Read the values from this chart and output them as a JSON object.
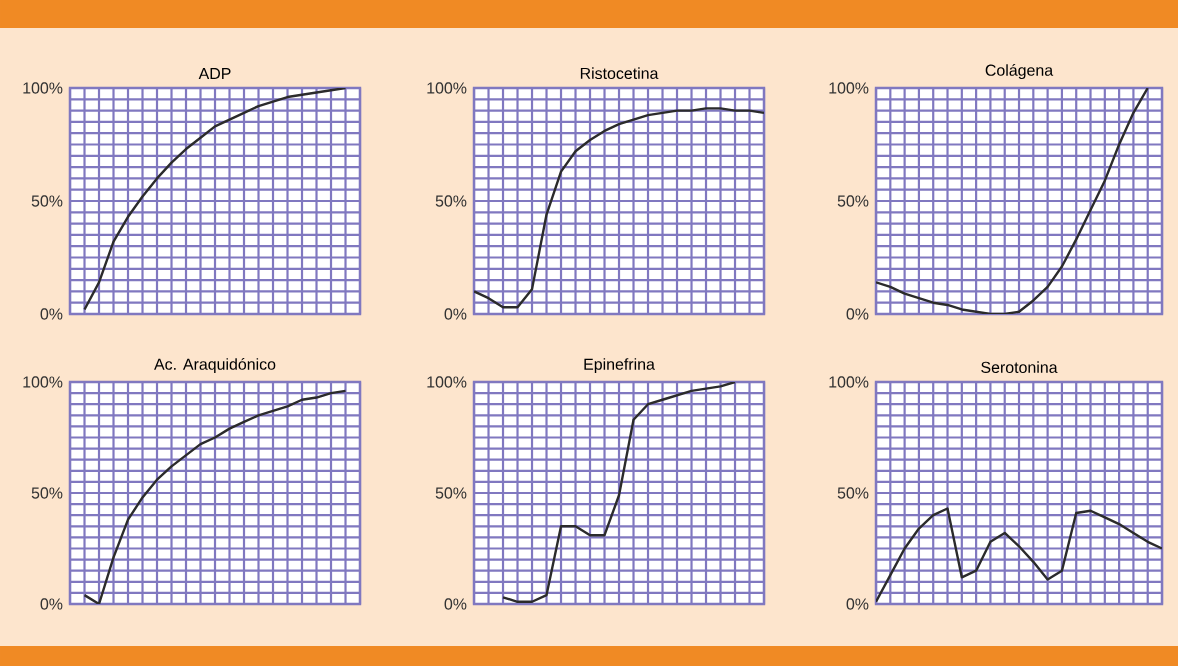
{
  "chart_data": [
    {
      "type": "line",
      "title": "ADP",
      "categories": [
        null,
        null,
        null,
        null,
        null,
        null,
        null,
        null,
        null,
        null,
        null,
        null,
        null,
        null,
        null,
        null,
        null,
        null,
        null,
        null,
        null
      ],
      "ylim": [
        0,
        100
      ],
      "yticks": [
        {
          "value": 0,
          "label": "0%"
        },
        {
          "value": 50,
          "label": "50%"
        },
        {
          "value": 100,
          "label": "100%"
        }
      ],
      "grid": true,
      "series": [
        {
          "color": "#2b2b2b",
          "values": [
            null,
            2,
            14,
            32,
            43,
            52,
            60,
            67,
            73,
            78,
            83,
            86,
            89,
            92,
            94,
            96,
            97,
            98,
            99,
            100,
            null
          ]
        }
      ]
    },
    {
      "type": "line",
      "title": "Ristocetina",
      "categories": [
        null,
        null,
        null,
        null,
        null,
        null,
        null,
        null,
        null,
        null,
        null,
        null,
        null,
        null,
        null,
        null,
        null,
        null,
        null,
        null,
        null
      ],
      "ylim": [
        0,
        100
      ],
      "yticks": [
        {
          "value": 0,
          "label": "0%"
        },
        {
          "value": 50,
          "label": "50%"
        },
        {
          "value": 100,
          "label": "100%"
        }
      ],
      "grid": true,
      "series": [
        {
          "color": "#2b2b2b",
          "values": [
            10,
            7,
            3,
            3,
            11,
            44,
            63,
            72,
            77,
            81,
            84,
            86,
            88,
            89,
            90,
            90,
            91,
            91,
            90,
            90,
            89
          ]
        }
      ]
    },
    {
      "type": "line",
      "title": "Colágena",
      "categories": [
        null,
        null,
        null,
        null,
        null,
        null,
        null,
        null,
        null,
        null,
        null,
        null,
        null,
        null,
        null,
        null,
        null,
        null,
        null,
        null,
        null
      ],
      "ylim": [
        0,
        100
      ],
      "yticks": [
        {
          "value": 0,
          "label": "0%"
        },
        {
          "value": 50,
          "label": "50%"
        },
        {
          "value": 100,
          "label": "100%"
        }
      ],
      "grid": true,
      "series": [
        {
          "color": "#2b2b2b",
          "values": [
            14,
            12,
            9,
            7,
            5,
            4,
            2,
            1,
            0,
            0,
            1,
            6,
            12,
            21,
            33,
            46,
            59,
            75,
            89,
            100,
            null
          ]
        }
      ]
    },
    {
      "type": "line",
      "title": "Ac. Araquidónico",
      "categories": [
        null,
        null,
        null,
        null,
        null,
        null,
        null,
        null,
        null,
        null,
        null,
        null,
        null,
        null,
        null,
        null,
        null,
        null,
        null,
        null,
        null
      ],
      "ylim": [
        0,
        100
      ],
      "yticks": [
        {
          "value": 0,
          "label": "0%"
        },
        {
          "value": 50,
          "label": "50%"
        },
        {
          "value": 100,
          "label": "100%"
        }
      ],
      "grid": true,
      "series": [
        {
          "color": "#2b2b2b",
          "values": [
            null,
            4,
            0,
            21,
            38,
            48,
            56,
            62,
            67,
            72,
            75,
            79,
            82,
            85,
            87,
            89,
            92,
            93,
            95,
            96,
            null
          ]
        }
      ]
    },
    {
      "type": "line",
      "title": "Epinefrina",
      "categories": [
        null,
        null,
        null,
        null,
        null,
        null,
        null,
        null,
        null,
        null,
        null,
        null,
        null,
        null,
        null,
        null,
        null,
        null,
        null,
        null,
        null
      ],
      "ylim": [
        0,
        100
      ],
      "yticks": [
        {
          "value": 0,
          "label": "0%"
        },
        {
          "value": 50,
          "label": "50%"
        },
        {
          "value": 100,
          "label": "100%"
        }
      ],
      "grid": true,
      "series": [
        {
          "color": "#2b2b2b",
          "values": [
            null,
            null,
            3,
            1,
            1,
            4,
            35,
            35,
            31,
            31,
            49,
            83,
            90,
            92,
            94,
            96,
            97,
            98,
            100,
            null,
            null
          ]
        }
      ]
    },
    {
      "type": "line",
      "title": "Serotonina",
      "categories": [
        null,
        null,
        null,
        null,
        null,
        null,
        null,
        null,
        null,
        null,
        null,
        null,
        null,
        null,
        null,
        null,
        null,
        null,
        null,
        null,
        null
      ],
      "ylim": [
        0,
        100
      ],
      "yticks": [
        {
          "value": 0,
          "label": "0%"
        },
        {
          "value": 50,
          "label": "50%"
        },
        {
          "value": 100,
          "label": "100%"
        }
      ],
      "grid": true,
      "series": [
        {
          "color": "#2b2b2b",
          "values": [
            1,
            13,
            25,
            34,
            40,
            43,
            12,
            15,
            28,
            32,
            26,
            19,
            11,
            15,
            41,
            42,
            39,
            36,
            32,
            28,
            25
          ]
        }
      ]
    }
  ]
}
